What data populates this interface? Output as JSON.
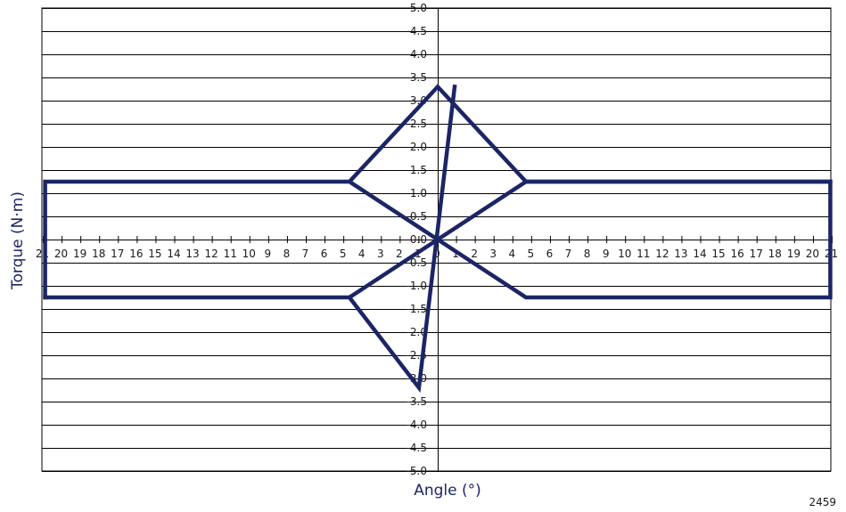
{
  "figure_id": "2459",
  "colors": {
    "line": "#1b2566",
    "grid": "#000000",
    "axis_title": "#1b2566"
  },
  "chart_data": {
    "type": "line",
    "title": "",
    "xlabel": "Angle (°)",
    "ylabel": "Torque (N·m)",
    "xlim": [
      -21,
      21
    ],
    "ylim": [
      -5.0,
      5.0
    ],
    "grid": "horizontal",
    "legend": "none",
    "x_tick_labels": [
      "21",
      "20",
      "19",
      "18",
      "17",
      "16",
      "15",
      "14",
      "13",
      "12",
      "11",
      "10",
      "9",
      "8",
      "7",
      "6",
      "5",
      "4",
      "3",
      "2",
      "1",
      "0",
      "1",
      "2",
      "3",
      "4",
      "5",
      "6",
      "7",
      "8",
      "9",
      "10",
      "11",
      "12",
      "13",
      "14",
      "15",
      "16",
      "17",
      "18",
      "19",
      "20",
      "21"
    ],
    "y_tick_labels": [
      "5.0",
      "4.5",
      "4.0",
      "3.5",
      "3.0",
      "2.5",
      "2.0",
      "1.5",
      "1.0",
      "0.5",
      "0.0",
      "-0.5",
      "-1.0",
      "-1.5",
      "-2.0",
      "-2.5",
      "-3.0",
      "-3.5",
      "-4.0",
      "-4.5",
      "-5.0"
    ],
    "series": [
      {
        "x": [
          -20.9,
          -4.7,
          0,
          4.7,
          20.9,
          20.9,
          4.7,
          0,
          -4.7,
          -20.9,
          -20.9
        ],
        "y": [
          1.25,
          1.25,
          0,
          -1.25,
          -1.25,
          1.25,
          1.25,
          3.3,
          1.25,
          1.25,
          -1.25
        ],
        "closed": false
      },
      {
        "x": [
          -20.9,
          -4.7,
          0,
          4.7,
          20.9
        ],
        "y": [
          -1.25,
          -1.25,
          0,
          1.25,
          1.25
        ]
      },
      {
        "x": [
          0.9,
          -1.0,
          -4.7
        ],
        "y": [
          3.3,
          -3.2,
          -1.25
        ]
      }
    ]
  }
}
